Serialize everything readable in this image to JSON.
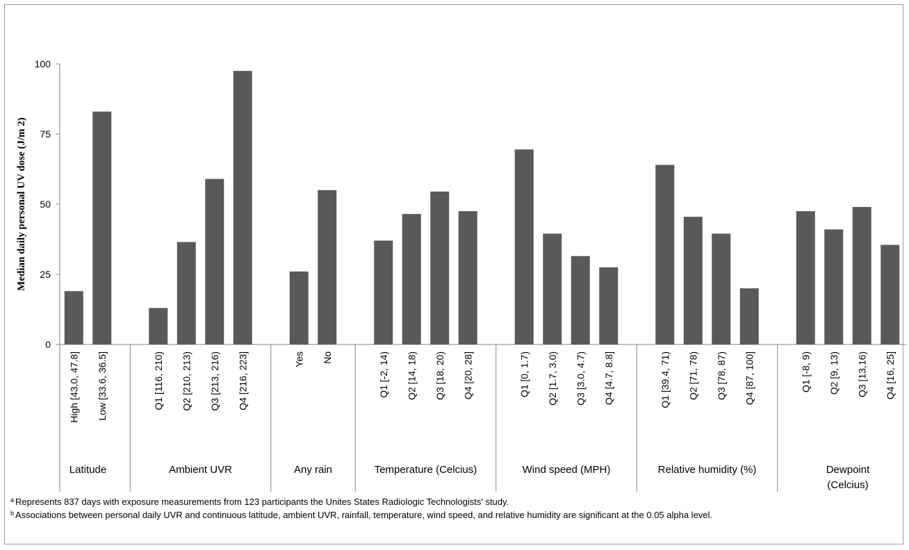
{
  "chart_data": {
    "type": "bar",
    "ylabel": "Median daily personal UV dose (J/m 2)",
    "ylim": [
      0,
      100
    ],
    "yticks": [
      0,
      25,
      50,
      75,
      100
    ],
    "bar_color": "#595959",
    "groups": [
      {
        "label": "Latitude",
        "categories": [
          "High [43.0, 47.8]",
          "Low [33.6, 36.5]"
        ],
        "values": [
          19,
          83
        ]
      },
      {
        "label": "Ambient UVR",
        "categories": [
          "Q1 [116, 210)",
          "Q2 [210, 213)",
          "Q3 [213, 216)",
          "Q4 [216, 223]"
        ],
        "values": [
          13,
          36.5,
          59,
          97.5
        ]
      },
      {
        "label": "Any rain",
        "categories": [
          "Yes",
          "No"
        ],
        "values": [
          26,
          55
        ]
      },
      {
        "label": "Temperature (Celcius)",
        "categories": [
          "Q1 [-2, 14)",
          "Q2 [14, 18)",
          "Q3 [18, 20)",
          "Q4 [20, 28]"
        ],
        "values": [
          37,
          46.5,
          54.5,
          47.5
        ]
      },
      {
        "label": "Wind speed (MPH)",
        "categories": [
          "Q1 [0, 1.7)",
          "Q2 [1.7, 3.0)",
          "Q3 [3.0, 4.7)",
          "Q4 [4.7, 8.8]"
        ],
        "values": [
          69.5,
          39.5,
          31.5,
          27.5
        ]
      },
      {
        "label": "Relative humidity (%)",
        "categories": [
          "Q1 [39.4, 71)",
          "Q2 [71, 78)",
          "Q3 [78, 87)",
          "Q4 [87, 100]"
        ],
        "values": [
          64,
          45.5,
          39.5,
          20
        ]
      },
      {
        "label": "Dewpoint (Celcius)",
        "categories": [
          "Q1 [-8, 9)",
          "Q2 [9, 13)",
          "Q3 [13,16)",
          "Q4 [16, 25]"
        ],
        "values": [
          47.5,
          41,
          49,
          35.5
        ]
      }
    ]
  },
  "footnotes": [
    {
      "marker": "a",
      "text": "Represents 837 days with exposure measurements from 123 participants the Unites States Radiologic Technologists' study."
    },
    {
      "marker": "b",
      "text": "Associations between personal daily UVR and continuous latitude, ambient UVR, rainfall, temperature, wind speed, and relative humidity are significant at the 0.05 alpha level."
    }
  ]
}
